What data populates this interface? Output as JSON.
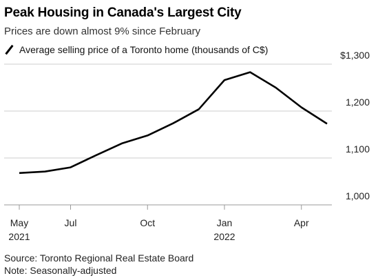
{
  "header": {
    "title": "Peak Housing in Canada's Largest City",
    "subtitle": "Prices are down almost 9% since February",
    "legend_label": "Average selling price of a Toronto home (thousands of C$)"
  },
  "footer": {
    "source": "Source: Toronto Regional Real Estate Board",
    "note": "Note: Seasonally-adjusted"
  },
  "colors": {
    "line": "#000000",
    "grid": "#cccccc",
    "axis": "#999999",
    "text": "#222222"
  },
  "chart_data": {
    "type": "line",
    "title": "Peak Housing in Canada's Largest City",
    "subtitle": "Prices are down almost 9% since February",
    "xlabel": "",
    "ylabel": "",
    "grid": true,
    "legend_placement": "top-left",
    "x_ticks": [
      {
        "pos": 0,
        "label": "May",
        "sublabel": "2021"
      },
      {
        "pos": 2,
        "label": "Jul",
        "sublabel": ""
      },
      {
        "pos": 5,
        "label": "Oct",
        "sublabel": ""
      },
      {
        "pos": 8,
        "label": "Jan",
        "sublabel": "2022"
      },
      {
        "pos": 11,
        "label": "Apr",
        "sublabel": ""
      }
    ],
    "y_ticks": [
      {
        "value": 1000,
        "label": "1,000"
      },
      {
        "value": 1100,
        "label": "1,100"
      },
      {
        "value": 1200,
        "label": "1,200"
      },
      {
        "value": 1300,
        "label": "$1,300"
      }
    ],
    "xlim": [
      0,
      12
    ],
    "ylim": [
      1000,
      1300
    ],
    "series": [
      {
        "name": "Average selling price of a Toronto home (thousands of C$)",
        "x": [
          "2021-05",
          "2021-06",
          "2021-07",
          "2021-08",
          "2021-09",
          "2021-10",
          "2021-11",
          "2021-12",
          "2022-01",
          "2022-02",
          "2022-03",
          "2022-04",
          "2022-05"
        ],
        "x_index": [
          0,
          1,
          2,
          3,
          4,
          5,
          6,
          7,
          8,
          9,
          10,
          11,
          12
        ],
        "values": [
          1068,
          1071,
          1080,
          1106,
          1131,
          1148,
          1174,
          1204,
          1266,
          1283,
          1250,
          1208,
          1173
        ]
      }
    ]
  }
}
